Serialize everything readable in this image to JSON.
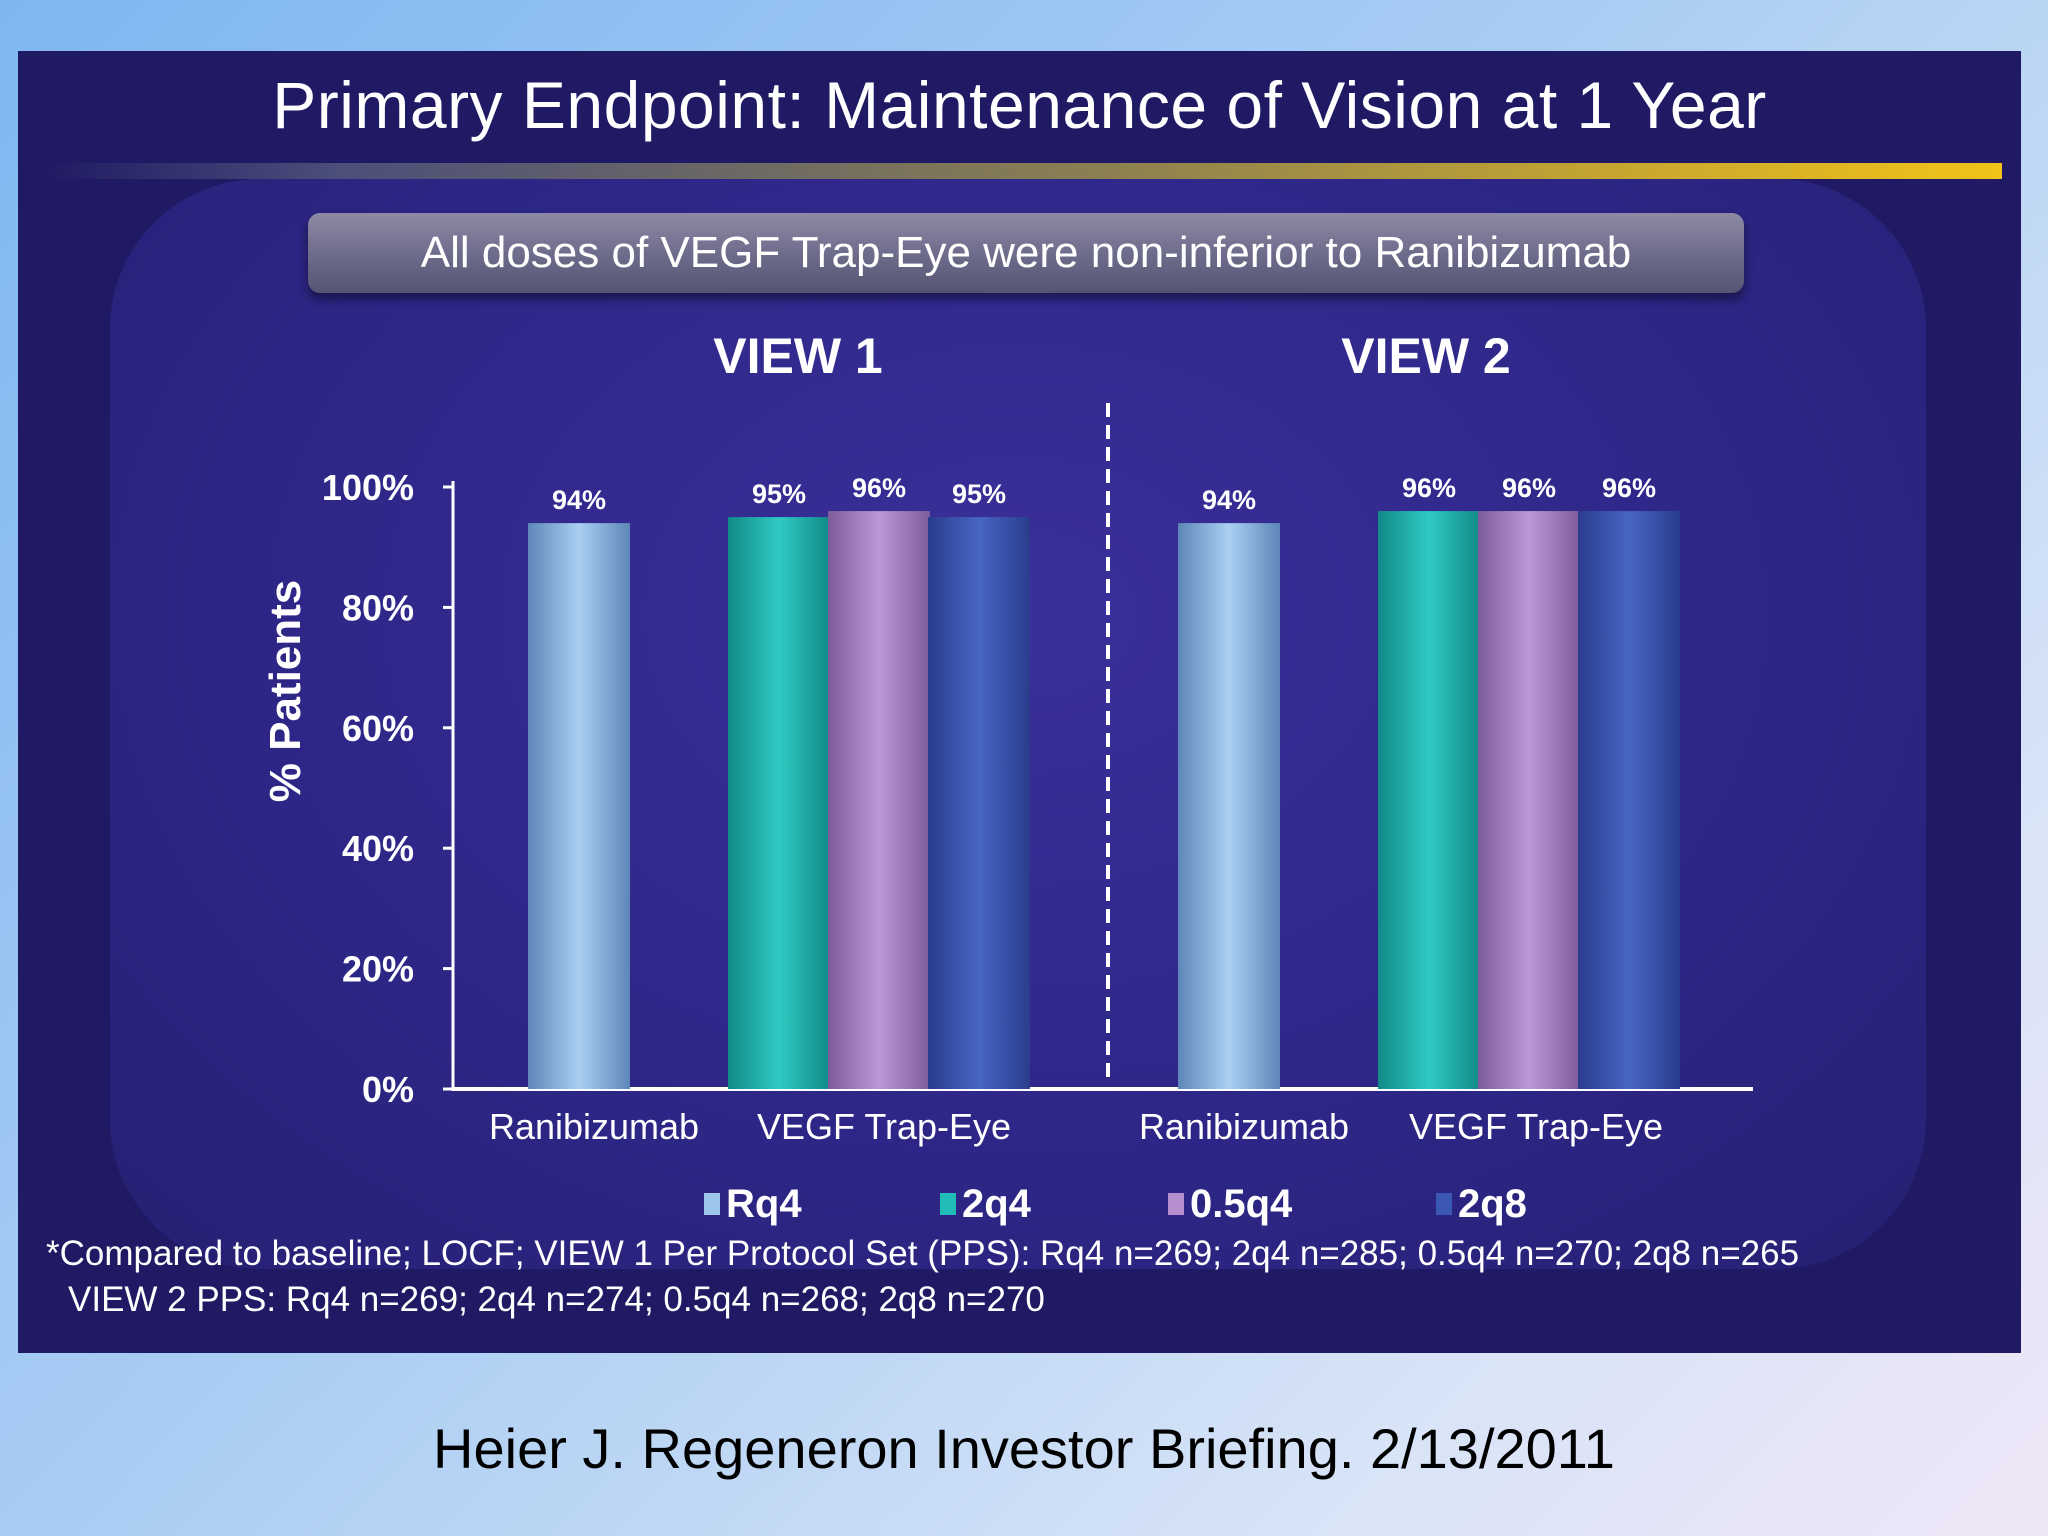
{
  "slide": {
    "title": "Primary Endpoint: Maintenance of Vision at 1 Year",
    "callout": "All doses of VEGF Trap-Eye were non-inferior to Ranibizumab",
    "footnote_line1": "*Compared to baseline; LOCF; VIEW 1 Per Protocol Set (PPS): Rq4 n=269; 2q4 n=285; 0.5q4 n=270; 2q8 n=265",
    "footnote_line2": "VIEW 2 PPS: Rq4 n=269; 2q4 n=274; 0.5q4 n=268; 2q8 n=270",
    "citation": "Heier J. Regeneron Investor Briefing. 2/13/2011"
  },
  "chart_data": {
    "type": "bar",
    "ylabel": "% Patients",
    "ylim": [
      0,
      100
    ],
    "yticks": [
      "0%",
      "20%",
      "40%",
      "60%",
      "80%",
      "100%"
    ],
    "legend_position": "bottom",
    "groups": [
      {
        "title": "VIEW 1",
        "category_labels": [
          "Ranibizumab",
          "VEGF Trap-Eye"
        ],
        "bars": [
          {
            "series": "Rq4",
            "value": 94,
            "label": "94%"
          },
          {
            "series": "2q4",
            "value": 95,
            "label": "95%"
          },
          {
            "series": "0.5q4",
            "value": 96,
            "label": "96%"
          },
          {
            "series": "2q8",
            "value": 95,
            "label": "95%"
          }
        ]
      },
      {
        "title": "VIEW 2",
        "category_labels": [
          "Ranibizumab",
          "VEGF Trap-Eye"
        ],
        "bars": [
          {
            "series": "Rq4",
            "value": 94,
            "label": "94%"
          },
          {
            "series": "2q4",
            "value": 96,
            "label": "96%"
          },
          {
            "series": "0.5q4",
            "value": 96,
            "label": "96%"
          },
          {
            "series": "2q8",
            "value": 96,
            "label": "96%"
          }
        ]
      }
    ],
    "series": [
      {
        "name": "Rq4",
        "color": "#9cc6ec"
      },
      {
        "name": "2q4",
        "color": "#22bcb8"
      },
      {
        "name": "0.5q4",
        "color": "#b58fce"
      },
      {
        "name": "2q8",
        "color": "#3a58b4"
      }
    ]
  }
}
